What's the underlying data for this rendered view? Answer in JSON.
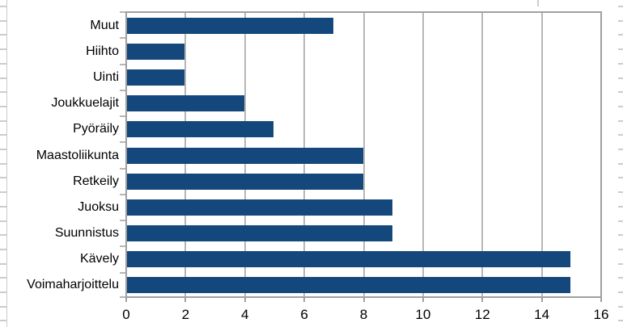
{
  "chart_data": {
    "type": "bar",
    "orientation": "horizontal",
    "title": "",
    "categories": [
      "Muut",
      "Hiihto",
      "Uinti",
      "Joukkuelajit",
      "Pyöräily",
      "Maastoliikunta",
      "Retkeily",
      "Juoksu",
      "Suunnistus",
      "Kävely",
      "Voimaharjoittelu"
    ],
    "values": [
      7,
      2,
      2,
      4,
      5,
      8,
      8,
      9,
      9,
      15,
      15
    ],
    "xlabel": "",
    "ylabel": "",
    "xlim": [
      0,
      16
    ],
    "xticks": [
      0,
      2,
      4,
      6,
      8,
      10,
      12,
      14,
      16
    ],
    "grid": "vertical-only",
    "legend": "none"
  },
  "colors": {
    "background": "#ffffff",
    "bar": "#14487c",
    "gridline": "#b6b6b6",
    "frame": "#a0a0a0",
    "sheet_grid": "#cccccc",
    "text": "#000000"
  }
}
